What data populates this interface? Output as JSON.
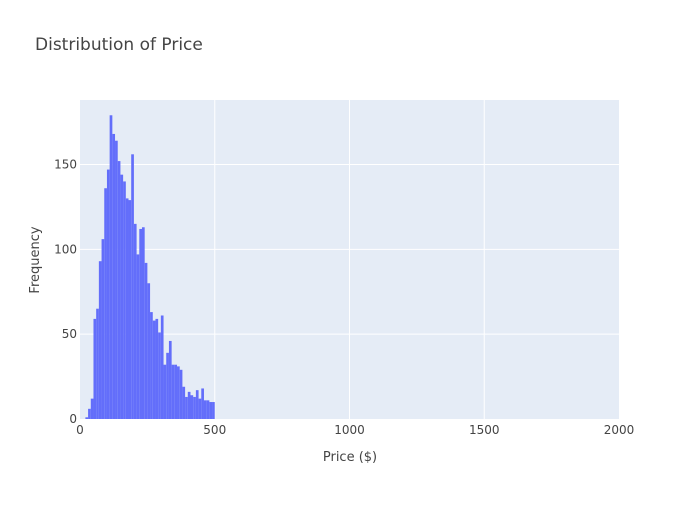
{
  "chart_data": {
    "type": "bar",
    "title": "Distribution of Price",
    "xlabel": "Price ($)",
    "ylabel": "Frequency",
    "xlim": [
      0,
      2000
    ],
    "ylim": [
      0,
      188
    ],
    "xticks": [
      0,
      500,
      1000,
      1500,
      2000
    ],
    "xtick_labels": [
      "0",
      "500",
      "1000",
      "1500",
      "2000"
    ],
    "yticks": [
      0,
      50,
      100,
      150
    ],
    "ytick_labels": [
      "0",
      "50",
      "100",
      "150"
    ],
    "grid": true,
    "legend": "none",
    "bin_width": 10,
    "bins_start": [
      20,
      30,
      40,
      50,
      60,
      70,
      80,
      90,
      100,
      110,
      120,
      130,
      140,
      150,
      160,
      170,
      180,
      190,
      200,
      210,
      220,
      230,
      240,
      250,
      260,
      270,
      280,
      290,
      300,
      310,
      320,
      330,
      340,
      350,
      360,
      370,
      380,
      390,
      400,
      410,
      420,
      430,
      440,
      450,
      460,
      470,
      480,
      490
    ],
    "values": [
      1,
      6,
      12,
      59,
      65,
      93,
      106,
      136,
      147,
      179,
      168,
      164,
      152,
      144,
      140,
      130,
      129,
      156,
      115,
      97,
      112,
      113,
      92,
      80,
      63,
      58,
      59,
      51,
      61,
      32,
      39,
      46,
      32,
      32,
      31,
      29,
      19,
      13,
      16,
      14,
      13,
      17,
      12,
      18,
      11,
      11,
      10,
      10
    ],
    "colors": {
      "bar": "#636efa",
      "plot_bg": "#e5ecf6",
      "grid": "#ffffff",
      "text": "#444444"
    }
  }
}
